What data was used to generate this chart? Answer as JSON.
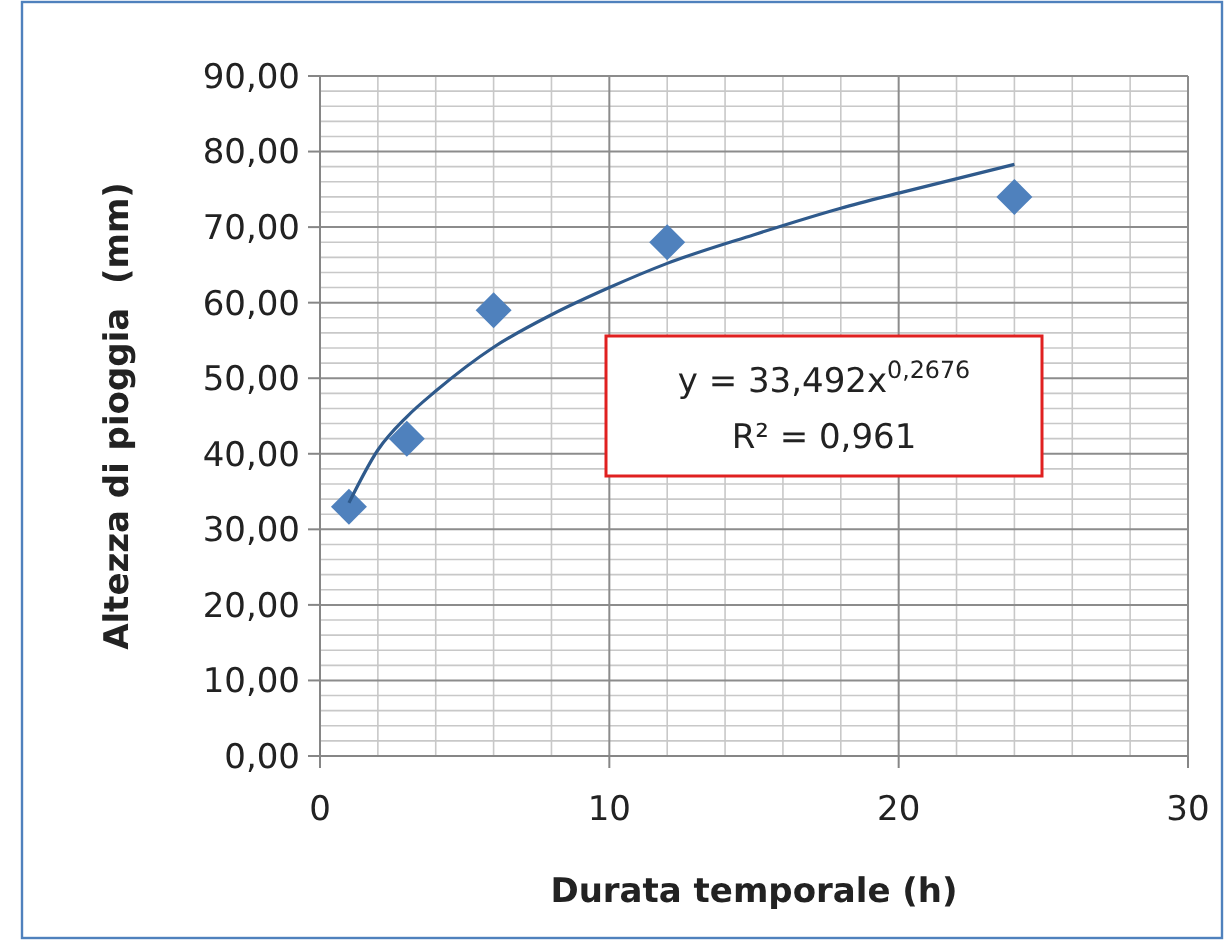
{
  "chart_data": {
    "type": "scatter",
    "xlabel": "Durata temporale (h)",
    "ylabel": "Altezza di pioggia  (mm)",
    "xlim": [
      0,
      30
    ],
    "xticks": [
      0,
      10,
      20,
      30
    ],
    "ylim": [
      0,
      90
    ],
    "yticks": [
      {
        "value": 0,
        "label": "0,00"
      },
      {
        "value": 10,
        "label": "10,00"
      },
      {
        "value": 20,
        "label": "20,00"
      },
      {
        "value": 30,
        "label": "30,00"
      },
      {
        "value": 40,
        "label": "40,00"
      },
      {
        "value": 50,
        "label": "50,00"
      },
      {
        "value": 60,
        "label": "60,00"
      },
      {
        "value": 70,
        "label": "70,00"
      },
      {
        "value": 80,
        "label": "80,00"
      },
      {
        "value": 90,
        "label": "90,00"
      }
    ],
    "grid": true,
    "marker": "diamond",
    "series": [
      {
        "color": "#4f81bd",
        "x": [
          1,
          3,
          6,
          12,
          24
        ],
        "values": [
          33,
          42,
          59,
          68,
          74
        ]
      },
      {
        "type": "line",
        "color": "#2f5a8c",
        "line_style": "solid",
        "marker": "none",
        "x": [
          1,
          2,
          3,
          4,
          6,
          8,
          10,
          12,
          15,
          18,
          20,
          24
        ],
        "values": [
          33.5,
          40.5,
          44.9,
          48.3,
          54.1,
          58.4,
          62.0,
          65.2,
          69.0,
          72.5,
          74.5,
          78.3
        ]
      }
    ],
    "annotations": [
      "y = 33,492x$^{0,2676}$",
      "R² = 0,961"
    ]
  }
}
